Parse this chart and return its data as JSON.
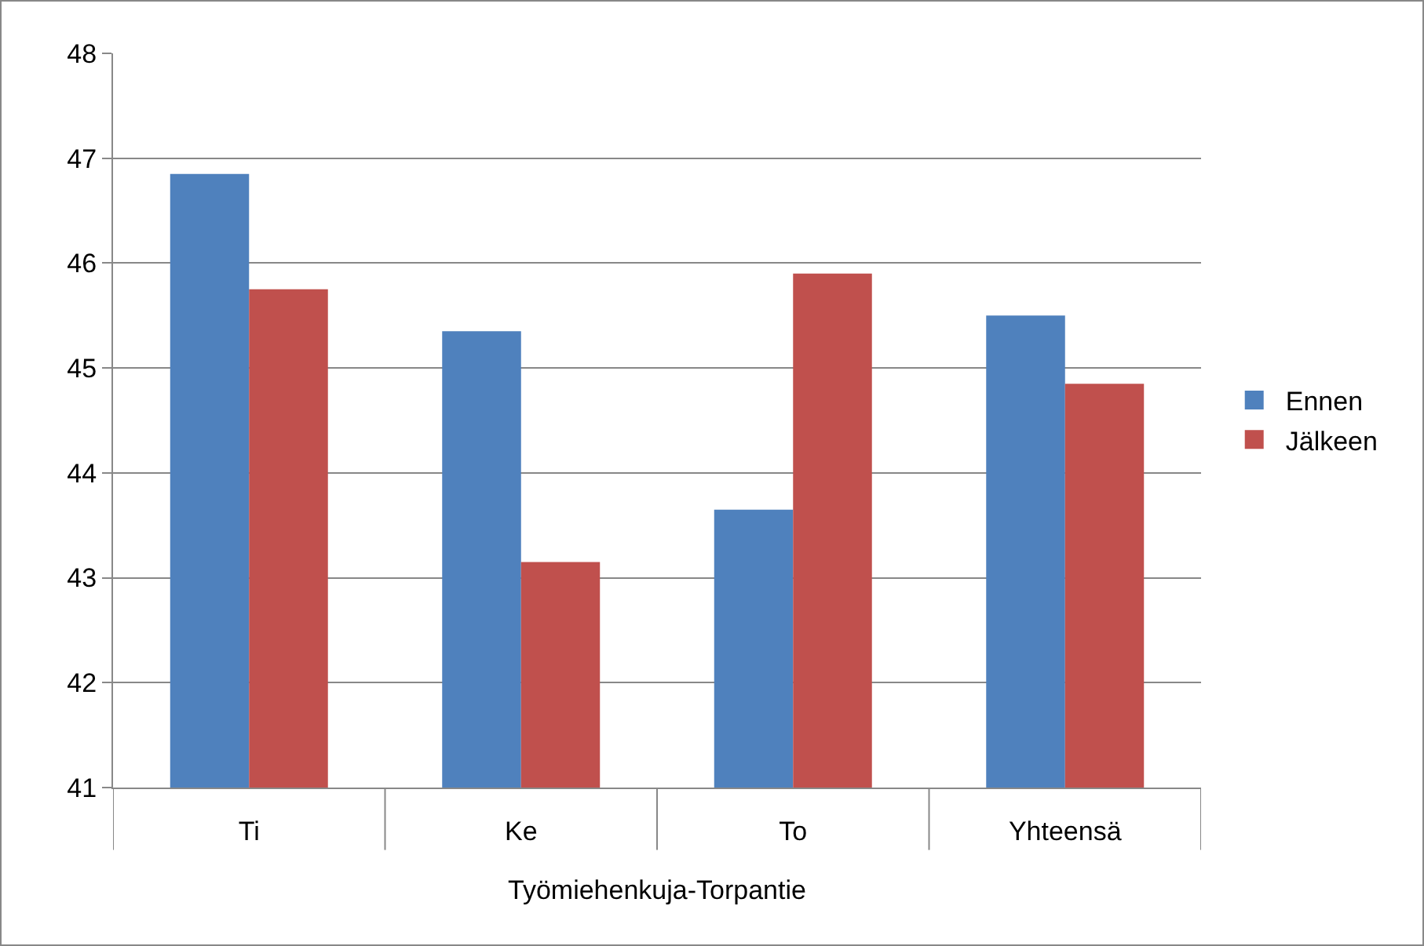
{
  "chart_data": {
    "type": "bar",
    "xlabel": "Työmiehenkuja-Torpantie",
    "categories": [
      "Ti",
      "Ke",
      "To",
      "Yhteensä"
    ],
    "series": [
      {
        "name": "Ennen",
        "color": "#4f81bd",
        "values": [
          46.85,
          45.35,
          43.65,
          45.5
        ]
      },
      {
        "name": "Jälkeen",
        "color": "#c0504d",
        "values": [
          45.75,
          43.15,
          45.9,
          44.85
        ]
      }
    ],
    "ylim": [
      41,
      48
    ],
    "yticks": [
      41,
      42,
      43,
      44,
      45,
      46,
      47,
      48
    ],
    "grid": "y",
    "legend": "right"
  }
}
